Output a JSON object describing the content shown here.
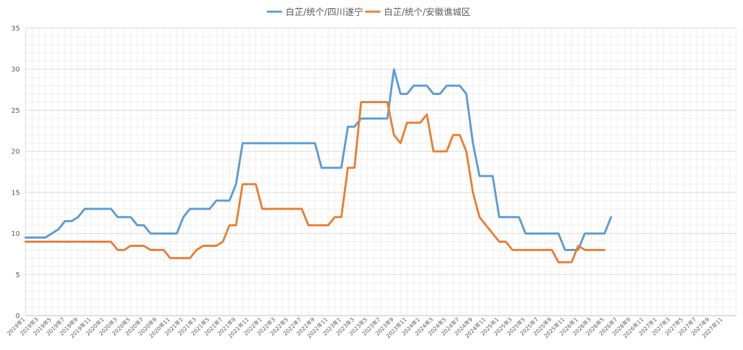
{
  "chart_data": {
    "type": "line",
    "title": "",
    "xlabel": "",
    "ylabel": "",
    "ylim": [
      0,
      35
    ],
    "y_ticks": [
      0,
      5,
      10,
      15,
      20,
      25,
      30,
      35
    ],
    "grid": true,
    "legend_position": "top",
    "x_tick_labels": [
      "2019年1",
      "2019年3",
      "2019年5",
      "2019年7",
      "2019年9",
      "2019年11",
      "2020年1",
      "2020年3",
      "2020年5",
      "2020年7",
      "2020年9",
      "2020年11",
      "2021年1",
      "2021年3",
      "2021年5",
      "2021年7",
      "2021年9",
      "2021年11",
      "2022年1",
      "2022年3",
      "2022年5",
      "2022年7",
      "2022年9",
      "2022年11",
      "2023年1",
      "2023年3",
      "2023年5",
      "2023年7",
      "2023年9",
      "2023年11",
      "2024年1",
      "2024年3",
      "2024年5",
      "2024年7",
      "2024年9",
      "2024年11",
      "2025年1",
      "2025年3",
      "2025年5",
      "2025年7",
      "2025年9",
      "2025年11",
      "2026年1",
      "2026年3",
      "2026年5",
      "2026年7",
      "2026年9",
      "2026年11",
      "2027年1",
      "2027年3",
      "2027年5",
      "2027年7",
      "2027年9",
      "2027年11"
    ],
    "series": [
      {
        "name": "白芷/统个/四川遂宁",
        "color": "#5b9bd5",
        "values": [
          9.5,
          9.5,
          9.5,
          9.5,
          10,
          10.5,
          11.5,
          11.5,
          12,
          13,
          13,
          13,
          13,
          13,
          12,
          12,
          12,
          11,
          11,
          10,
          10,
          10,
          10,
          10,
          12,
          13,
          13,
          13,
          13,
          14,
          14,
          14,
          16,
          21,
          21,
          21,
          21,
          21,
          21,
          21,
          21,
          21,
          21,
          21,
          21,
          18,
          18,
          18,
          18,
          23,
          23,
          24,
          24,
          24,
          24,
          24,
          30,
          27,
          27,
          28,
          28,
          28,
          27,
          27,
          28,
          28,
          28,
          27,
          21,
          17,
          17,
          17,
          12,
          12,
          12,
          12,
          10,
          10,
          10,
          10,
          10,
          10,
          8,
          8,
          8,
          10,
          10,
          10,
          10,
          12
        ]
      },
      {
        "name": "白芷/统个/安徽谯城区",
        "color": "#ed7d31",
        "values": [
          9,
          9,
          9,
          9,
          9,
          9,
          9,
          9,
          9,
          9,
          9,
          9,
          9,
          9,
          8,
          8,
          8.5,
          8.5,
          8.5,
          8,
          8,
          8,
          7,
          7,
          7,
          7,
          8,
          8.5,
          8.5,
          8.5,
          9,
          11,
          11,
          16,
          16,
          16,
          13,
          13,
          13,
          13,
          13,
          13,
          13,
          11,
          11,
          11,
          11,
          12,
          12,
          18,
          18,
          26,
          26,
          26,
          26,
          26,
          22,
          21,
          23.5,
          23.5,
          23.5,
          24.5,
          20,
          20,
          20,
          22,
          22,
          20,
          15,
          12,
          11,
          10,
          9,
          9,
          8,
          8,
          8,
          8,
          8,
          8,
          8,
          6.5,
          6.5,
          6.5,
          8.5,
          8,
          8,
          8,
          8
        ]
      }
    ]
  }
}
